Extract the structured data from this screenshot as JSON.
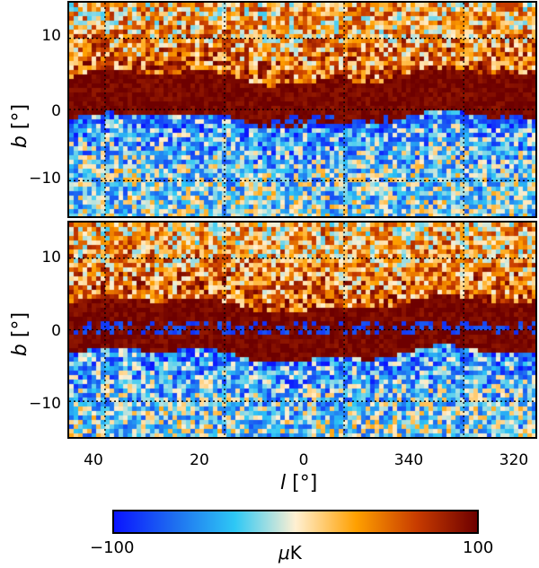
{
  "chart_data": [
    {
      "type": "heatmap",
      "panel": "top",
      "ylabel_symbol": "b",
      "ylabel_unit": "[°]",
      "yticks": [
        "10",
        "0",
        "−10"
      ],
      "ytick_values": [
        10,
        0,
        -10
      ],
      "ylim": [
        -15,
        15
      ],
      "xlim": [
        46,
        328
      ],
      "grid": true,
      "band_center_b": 1.5,
      "band_halfwidth_b": 3,
      "negative_stripe_b": -1.5
    },
    {
      "type": "heatmap",
      "panel": "bottom",
      "ylabel_symbol": "b",
      "ylabel_unit": "[°]",
      "yticks": [
        "10",
        "0",
        "−10"
      ],
      "ytick_values": [
        10,
        0,
        -10
      ],
      "ylim": [
        -15,
        15
      ],
      "xlim": [
        46,
        328
      ],
      "grid": true,
      "band_center_b": 0,
      "band_halfwidth_b": 3.5,
      "negative_stripe_b": 0
    }
  ],
  "xaxis": {
    "label_symbol": "l",
    "label_unit": "[°]",
    "ticks": [
      "40",
      "20",
      "0",
      "340",
      "320"
    ],
    "tick_values": [
      40,
      20,
      0,
      -20,
      -40
    ]
  },
  "colorbar": {
    "min_label": "−100",
    "max_label": "100",
    "unit_mu": "μ",
    "unit_k": "K",
    "range": [
      -100,
      100
    ],
    "colors": [
      "#0a14ff",
      "#1e6ef0",
      "#2ec8f5",
      "#fff0d2",
      "#ffa000",
      "#c83c00",
      "#6e0000"
    ]
  }
}
